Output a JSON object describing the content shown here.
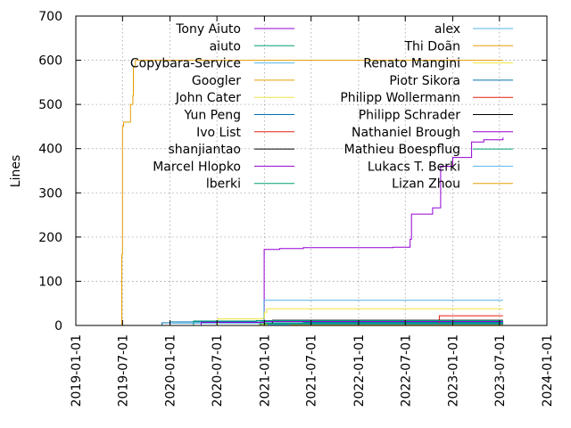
{
  "chart_data": {
    "type": "line",
    "title": "",
    "xlabel": "",
    "ylabel": "Lines",
    "ylim": [
      0,
      700
    ],
    "yticks": [
      0,
      100,
      200,
      300,
      400,
      500,
      600,
      700
    ],
    "xlim": [
      "2019-01-01",
      "2024-01-01"
    ],
    "xticks": [
      "2019-01-01",
      "2019-07-01",
      "2020-01-01",
      "2020-07-01",
      "2021-01-01",
      "2021-07-01",
      "2022-01-01",
      "2022-07-01",
      "2023-01-01",
      "2023-07-01",
      "2024-01-01"
    ],
    "grid": true,
    "legend_placement": "top, two columns inside plot",
    "series": [
      {
        "name": "Tony Aiuto",
        "color": "#9400d3",
        "points": [
          [
            "2020-01-01",
            0
          ],
          [
            "2020-12-28",
            0
          ],
          [
            "2020-12-31",
            172
          ],
          [
            "2021-03-01",
            174
          ],
          [
            "2021-06-01",
            176
          ],
          [
            "2022-05-15",
            177
          ],
          [
            "2022-07-20",
            195
          ],
          [
            "2022-07-25",
            252
          ],
          [
            "2022-10-15",
            266
          ],
          [
            "2022-11-15",
            360
          ],
          [
            "2023-01-01",
            380
          ],
          [
            "2023-03-15",
            415
          ],
          [
            "2023-05-01",
            420
          ],
          [
            "2023-07-15",
            425
          ]
        ]
      },
      {
        "name": "aiuto",
        "color": "#009e73",
        "points": [
          [
            "2020-01-01",
            0
          ],
          [
            "2021-01-01",
            5
          ],
          [
            "2021-06-01",
            6
          ],
          [
            "2023-07-15",
            7
          ]
        ]
      },
      {
        "name": "Copybara-Service",
        "color": "#56b4e9",
        "points": [
          [
            "2019-07-01",
            0
          ],
          [
            "2020-01-01",
            5
          ],
          [
            "2020-12-20",
            10
          ],
          [
            "2020-12-30",
            57
          ],
          [
            "2023-07-15",
            57
          ]
        ]
      },
      {
        "name": "Googler",
        "color": "#e69f00",
        "points": [
          [
            "2019-06-25",
            0
          ],
          [
            "2019-06-28",
            160
          ],
          [
            "2019-07-01",
            450
          ],
          [
            "2019-07-05",
            460
          ],
          [
            "2019-08-01",
            500
          ],
          [
            "2019-08-10",
            520
          ],
          [
            "2019-08-12",
            585
          ],
          [
            "2019-08-20",
            600
          ],
          [
            "2023-07-15",
            600
          ]
        ]
      },
      {
        "name": "John Cater",
        "color": "#f0e442",
        "points": [
          [
            "2020-07-01",
            0
          ],
          [
            "2020-07-05",
            15
          ],
          [
            "2020-12-25",
            17
          ],
          [
            "2021-01-01",
            30
          ],
          [
            "2021-01-10",
            38
          ],
          [
            "2023-07-15",
            38
          ]
        ]
      },
      {
        "name": "Yun Peng",
        "color": "#0072b2",
        "points": [
          [
            "2019-08-01",
            0
          ],
          [
            "2019-12-01",
            6
          ],
          [
            "2020-01-01",
            8
          ],
          [
            "2020-09-01",
            8
          ],
          [
            "2023-07-15",
            8
          ]
        ]
      },
      {
        "name": "Ivo List",
        "color": "#e51e10",
        "points": [
          [
            "2022-11-01",
            0
          ],
          [
            "2022-11-10",
            22
          ],
          [
            "2023-07-15",
            22
          ]
        ]
      },
      {
        "name": "shanjiantao",
        "color": "#000000",
        "points": [
          [
            "2021-01-01",
            0
          ],
          [
            "2021-02-01",
            12
          ],
          [
            "2023-07-15",
            12
          ]
        ]
      },
      {
        "name": "Marcel Hlopko",
        "color": "#9400d3",
        "points": [
          [
            "2019-09-01",
            0
          ],
          [
            "2020-05-01",
            7
          ],
          [
            "2021-01-01",
            9
          ],
          [
            "2023-07-15",
            9
          ]
        ]
      },
      {
        "name": "lberki",
        "color": "#009e73",
        "points": [
          [
            "2019-10-01",
            0
          ],
          [
            "2020-04-01",
            10
          ],
          [
            "2020-12-01",
            11
          ],
          [
            "2023-07-15",
            11
          ]
        ]
      },
      {
        "name": "alex",
        "color": "#56b4e9",
        "points": [
          [
            "2021-01-01",
            0
          ],
          [
            "2021-01-20",
            3
          ],
          [
            "2023-07-15",
            3
          ]
        ]
      },
      {
        "name": "Thi Doãn",
        "color": "#e69f00",
        "points": [
          [
            "2021-03-01",
            0
          ],
          [
            "2021-03-10",
            4
          ],
          [
            "2023-07-15",
            4
          ]
        ]
      },
      {
        "name": "Renato Mangini",
        "color": "#f0e442",
        "points": [
          [
            "2020-12-01",
            0
          ],
          [
            "2020-12-10",
            2
          ],
          [
            "2023-07-15",
            2
          ]
        ]
      },
      {
        "name": "Piotr Sikora",
        "color": "#0072b2",
        "points": [
          [
            "2021-06-01",
            0
          ],
          [
            "2021-06-10",
            5
          ],
          [
            "2023-07-15",
            5
          ]
        ]
      },
      {
        "name": "Philipp Wollermann",
        "color": "#e51e10",
        "points": [
          [
            "2021-02-01",
            0
          ],
          [
            "2021-02-05",
            3
          ],
          [
            "2023-07-15",
            3
          ]
        ]
      },
      {
        "name": "Philipp Schrader",
        "color": "#000000",
        "points": [
          [
            "2022-01-01",
            0
          ],
          [
            "2022-01-10",
            2
          ],
          [
            "2023-07-15",
            2
          ]
        ]
      },
      {
        "name": "Nathaniel Brough",
        "color": "#9400d3",
        "points": [
          [
            "2022-06-01",
            0
          ],
          [
            "2022-06-10",
            3
          ],
          [
            "2023-07-15",
            3
          ]
        ]
      },
      {
        "name": "Mathieu Boespflug",
        "color": "#009e73",
        "points": [
          [
            "2020-12-01",
            0
          ],
          [
            "2020-12-15",
            4
          ],
          [
            "2023-07-15",
            4
          ]
        ]
      },
      {
        "name": "Lukacs T. Berki",
        "color": "#56b4e9",
        "points": [
          [
            "2021-01-01",
            0
          ],
          [
            "2021-01-15",
            2
          ],
          [
            "2023-07-15",
            2
          ]
        ]
      },
      {
        "name": "Lizan Zhou",
        "color": "#e69f00",
        "points": [
          [
            "2021-04-01",
            0
          ],
          [
            "2021-04-10",
            1
          ],
          [
            "2023-07-15",
            1
          ]
        ]
      }
    ]
  }
}
